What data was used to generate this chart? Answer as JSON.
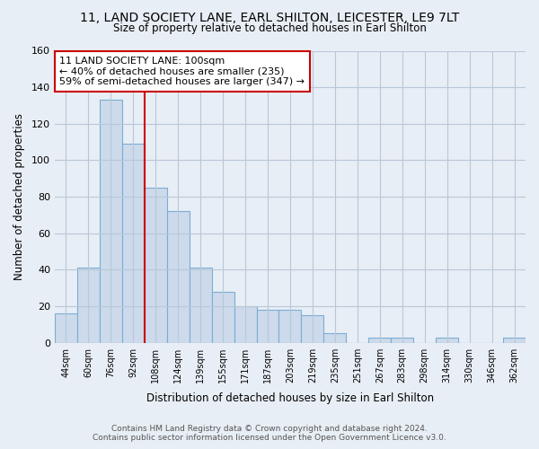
{
  "title": "11, LAND SOCIETY LANE, EARL SHILTON, LEICESTER, LE9 7LT",
  "subtitle": "Size of property relative to detached houses in Earl Shilton",
  "xlabel": "Distribution of detached houses by size in Earl Shilton",
  "ylabel": "Number of detached properties",
  "bar_labels": [
    "44sqm",
    "60sqm",
    "76sqm",
    "92sqm",
    "108sqm",
    "124sqm",
    "139sqm",
    "155sqm",
    "171sqm",
    "187sqm",
    "203sqm",
    "219sqm",
    "235sqm",
    "251sqm",
    "267sqm",
    "283sqm",
    "298sqm",
    "314sqm",
    "330sqm",
    "346sqm",
    "362sqm"
  ],
  "bar_values": [
    16,
    41,
    133,
    109,
    85,
    72,
    41,
    28,
    20,
    18,
    18,
    15,
    5,
    0,
    3,
    3,
    0,
    3,
    0,
    0,
    3
  ],
  "bar_color": "#ccdaeb",
  "bar_edge_color": "#7badd4",
  "vline_x": 3.5,
  "vline_color": "#cc0000",
  "annotation_text": "11 LAND SOCIETY LANE: 100sqm\n← 40% of detached houses are smaller (235)\n59% of semi-detached houses are larger (347) →",
  "annotation_box_color": "#ffffff",
  "annotation_box_edge": "#cc0000",
  "ylim": [
    0,
    160
  ],
  "yticks": [
    0,
    20,
    40,
    60,
    80,
    100,
    120,
    140,
    160
  ],
  "footer": "Contains HM Land Registry data © Crown copyright and database right 2024.\nContains public sector information licensed under the Open Government Licence v3.0.",
  "bg_color": "#e8eef5",
  "plot_bg_color": "#e8eef5",
  "grid_color": "#b8c8d8"
}
